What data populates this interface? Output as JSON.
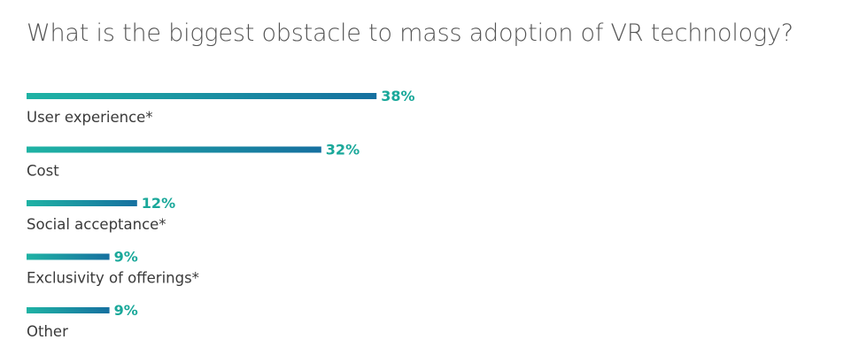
{
  "chart_data": {
    "type": "bar",
    "orientation": "horizontal",
    "title": "What is the biggest obstacle to mass adoption of VR technology?",
    "categories": [
      "User experience*",
      "Cost",
      "Social acceptance*",
      "Exclusivity of offerings*",
      "Other"
    ],
    "values": [
      38,
      32,
      12,
      9,
      9
    ],
    "value_labels": [
      "38%",
      "32%",
      "12%",
      "9%",
      "9%"
    ],
    "unit": "%",
    "xlim": [
      0,
      100
    ],
    "grid": false,
    "legend": "none"
  },
  "colors": {
    "bar_gradient_start": "#1fb3a4",
    "bar_gradient_end": "#1670a0",
    "value_label": "#1aa89a",
    "category_label": "#3a3a3a",
    "title": "#555555"
  }
}
